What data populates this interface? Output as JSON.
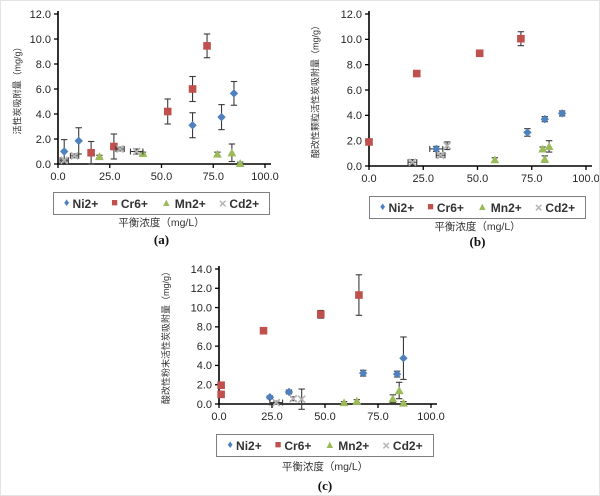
{
  "figure": {
    "x_axis_title": "平衡浓度（mg/L）",
    "legend_items": [
      {
        "label": "Ni2+",
        "marker": "diamond",
        "color": "#4f81bd"
      },
      {
        "label": "Cr6+",
        "marker": "square",
        "color": "#c0504d"
      },
      {
        "label": "Mn2+",
        "marker": "triangle",
        "color": "#9bbb59"
      },
      {
        "label": "Cd2+",
        "marker": "x",
        "color": "#b3b3b3"
      }
    ],
    "axis_color": "#000000",
    "error_bar_color": "#3a3a3a"
  },
  "chart_data": [
    {
      "id": "a",
      "type": "scatter",
      "caption": "(a)",
      "xlabel": "平衡浓度（mg/L）",
      "ylabel": "活性炭吸附量（mg/g）",
      "xlim": [
        0,
        100
      ],
      "ylim": [
        0,
        12
      ],
      "xticks": [
        "0.0",
        "25.0",
        "50.0",
        "75.0",
        "100.0"
      ],
      "yticks": [
        "0.0",
        "2.0",
        "4.0",
        "6.0",
        "8.0",
        "10.0",
        "12.0"
      ],
      "grid": false,
      "legend_position": "bottom",
      "series": [
        {
          "name": "Ni2+",
          "marker": "diamond",
          "color": "#4f81bd",
          "points": [
            {
              "x": 3,
              "y": 1.0,
              "yerr": 0.95
            },
            {
              "x": 10,
              "y": 1.85,
              "yerr": 1.05
            },
            {
              "x": 65,
              "y": 3.1,
              "yerr": 1.0
            },
            {
              "x": 79,
              "y": 3.75,
              "yerr": 1.0
            },
            {
              "x": 85,
              "y": 5.65,
              "yerr": 0.95
            }
          ]
        },
        {
          "name": "Cr6+",
          "marker": "square",
          "color": "#c0504d",
          "points": [
            {
              "x": 16,
              "y": 0.9,
              "yerr": 0.9
            },
            {
              "x": 27,
              "y": 1.4,
              "yerr": 1.0
            },
            {
              "x": 53,
              "y": 4.2,
              "yerr": 1.0
            },
            {
              "x": 65,
              "y": 6.0,
              "yerr": 1.0
            },
            {
              "x": 72,
              "y": 9.45,
              "yerr": 0.95
            }
          ]
        },
        {
          "name": "Mn2+",
          "marker": "triangle",
          "color": "#9bbb59",
          "points": [
            {
              "x": 20,
              "y": 0.6,
              "yerr": 0.1
            },
            {
              "x": 41,
              "y": 0.85,
              "yerr": 0.1
            },
            {
              "x": 77,
              "y": 0.8,
              "yerr": 0.15
            },
            {
              "x": 84,
              "y": 0.9,
              "yerr": 0.7
            },
            {
              "x": 88,
              "y": 0.05,
              "yerr": 0.1
            }
          ]
        },
        {
          "name": "Cd2+",
          "marker": "x",
          "color": "#b3b3b3",
          "points": [
            {
              "x": 3,
              "y": 0.3,
              "yerr": 0.1,
              "xerr": 2
            },
            {
              "x": 8,
              "y": 0.65,
              "yerr": 0.15,
              "xerr": 2
            },
            {
              "x": 30,
              "y": 1.2,
              "yerr": 0.15,
              "xerr": 2
            },
            {
              "x": 38,
              "y": 1.0,
              "yerr": 0.2,
              "xerr": 3
            }
          ]
        }
      ]
    },
    {
      "id": "b",
      "type": "scatter",
      "caption": "(b)",
      "xlabel": "平衡浓度（mg/L）",
      "ylabel": "酸改性颗粒活性炭吸附量（mg/g）",
      "xlim": [
        0,
        100
      ],
      "ylim": [
        0,
        12
      ],
      "xticks": [
        "0.0",
        "25.0",
        "50.0",
        "75.0",
        "100.0"
      ],
      "yticks": [
        "0.0",
        "2.0",
        "4.0",
        "6.0",
        "8.0",
        "10.0",
        "12.0"
      ],
      "grid": false,
      "legend_position": "bottom",
      "series": [
        {
          "name": "Ni2+",
          "marker": "diamond",
          "color": "#4f81bd",
          "points": [
            {
              "x": 31,
              "y": 1.35,
              "yerr": 0.2,
              "xerr": 3
            },
            {
              "x": 73,
              "y": 2.65,
              "yerr": 0.3
            },
            {
              "x": 81,
              "y": 3.7,
              "yerr": 0.2
            },
            {
              "x": 89,
              "y": 4.15,
              "yerr": 0.2
            }
          ]
        },
        {
          "name": "Cr6+",
          "marker": "square",
          "color": "#c0504d",
          "points": [
            {
              "x": 0,
              "y": 1.9,
              "yerr": 0.15
            },
            {
              "x": 22,
              "y": 7.3,
              "yerr": 0.15
            },
            {
              "x": 51,
              "y": 8.9,
              "yerr": 0.1
            },
            {
              "x": 70,
              "y": 10.05,
              "yerr": 0.55
            }
          ]
        },
        {
          "name": "Mn2+",
          "marker": "triangle",
          "color": "#9bbb59",
          "points": [
            {
              "x": 58,
              "y": 0.5,
              "yerr": 0.15
            },
            {
              "x": 80,
              "y": 1.35,
              "yerr": 0.15
            },
            {
              "x": 83,
              "y": 1.55,
              "yerr": 0.45
            },
            {
              "x": 81,
              "y": 0.55,
              "yerr": 0.25
            }
          ]
        },
        {
          "name": "Cd2+",
          "marker": "x",
          "color": "#b3b3b3",
          "points": [
            {
              "x": 20,
              "y": 0.3,
              "yerr": 0.2,
              "xerr": 2
            },
            {
              "x": 33,
              "y": 0.85,
              "yerr": 0.15,
              "xerr": 2
            },
            {
              "x": 36,
              "y": 1.6,
              "yerr": 0.3
            }
          ]
        }
      ]
    },
    {
      "id": "c",
      "type": "scatter",
      "caption": "(c)",
      "xlabel": "平衡浓度（mg/L）",
      "ylabel": "酸改性粉末活性炭吸附量（mg/g）",
      "xlim": [
        0,
        100
      ],
      "ylim": [
        0,
        14
      ],
      "xticks": [
        "0.0",
        "25.0",
        "50.0",
        "75.0",
        "100.0"
      ],
      "yticks": [
        "0.0",
        "2.0",
        "4.0",
        "6.0",
        "8.0",
        "10.0",
        "12.0",
        "14.0"
      ],
      "grid": false,
      "legend_position": "bottom",
      "series": [
        {
          "name": "Ni2+",
          "marker": "diamond",
          "color": "#4f81bd",
          "points": [
            {
              "x": 24,
              "y": 0.7,
              "yerr": 0.15
            },
            {
              "x": 33,
              "y": 1.25,
              "yerr": 0.2
            },
            {
              "x": 68,
              "y": 3.2,
              "yerr": 0.3
            },
            {
              "x": 84,
              "y": 3.1,
              "yerr": 0.3
            },
            {
              "x": 87,
              "y": 4.75,
              "yerr": 2.2
            }
          ]
        },
        {
          "name": "Cr6+",
          "marker": "square",
          "color": "#c0504d",
          "points": [
            {
              "x": 1,
              "y": 1.0,
              "yerr": 0.15
            },
            {
              "x": 1,
              "y": 1.95,
              "yerr": 0.2
            },
            {
              "x": 21,
              "y": 7.6,
              "yerr": 0.15
            },
            {
              "x": 48,
              "y": 9.3,
              "yerr": 0.4
            },
            {
              "x": 66,
              "y": 11.3,
              "yerr": 2.1
            }
          ]
        },
        {
          "name": "Mn2+",
          "marker": "triangle",
          "color": "#9bbb59",
          "points": [
            {
              "x": 59,
              "y": 0.15,
              "yerr": 0.1
            },
            {
              "x": 65,
              "y": 0.3,
              "yerr": 0.15
            },
            {
              "x": 82,
              "y": 0.55,
              "yerr": 0.4
            },
            {
              "x": 85,
              "y": 1.4,
              "yerr": 0.85
            },
            {
              "x": 87,
              "y": 0.1,
              "yerr": 0.15
            }
          ]
        },
        {
          "name": "Cd2+",
          "marker": "x",
          "color": "#b3b3b3",
          "points": [
            {
              "x": 27,
              "y": 0.15,
              "yerr": 0.15,
              "xerr": 3
            },
            {
              "x": 35,
              "y": 0.55,
              "yerr": 0.2
            },
            {
              "x": 39,
              "y": 0.5,
              "yerr": 1.05
            }
          ]
        }
      ]
    }
  ]
}
